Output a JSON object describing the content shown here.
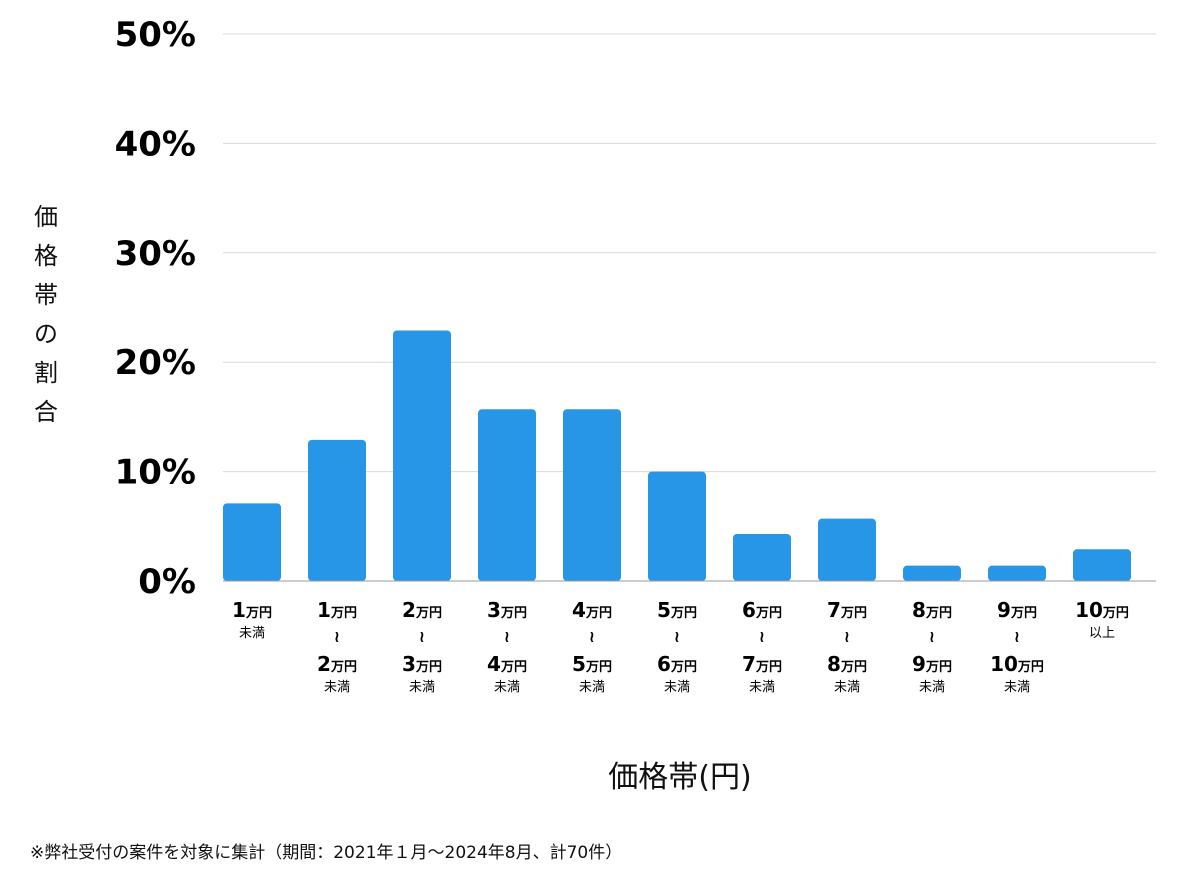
{
  "chart_data": {
    "type": "bar",
    "ylabel": "価格帯の割合",
    "xlabel": "価格帯(円)",
    "ylim": [
      0,
      50
    ],
    "yticks": [
      "0%",
      "10%",
      "20%",
      "30%",
      "40%",
      "50%"
    ],
    "grid": true,
    "bar_color": "#2896e6",
    "categories": [
      {
        "lower": "1",
        "lower_unit": "万円",
        "upper": "",
        "upper_unit": "",
        "note": "未満"
      },
      {
        "lower": "1",
        "lower_unit": "万円",
        "upper": "2",
        "upper_unit": "万円",
        "note": "未満"
      },
      {
        "lower": "2",
        "lower_unit": "万円",
        "upper": "3",
        "upper_unit": "万円",
        "note": "未満"
      },
      {
        "lower": "3",
        "lower_unit": "万円",
        "upper": "4",
        "upper_unit": "万円",
        "note": "未満"
      },
      {
        "lower": "4",
        "lower_unit": "万円",
        "upper": "5",
        "upper_unit": "万円",
        "note": "未満"
      },
      {
        "lower": "5",
        "lower_unit": "万円",
        "upper": "6",
        "upper_unit": "万円",
        "note": "未満"
      },
      {
        "lower": "6",
        "lower_unit": "万円",
        "upper": "7",
        "upper_unit": "万円",
        "note": "未満"
      },
      {
        "lower": "7",
        "lower_unit": "万円",
        "upper": "8",
        "upper_unit": "万円",
        "note": "未満"
      },
      {
        "lower": "8",
        "lower_unit": "万円",
        "upper": "9",
        "upper_unit": "万円",
        "note": "未満"
      },
      {
        "lower": "9",
        "lower_unit": "万円",
        "upper": "10",
        "upper_unit": "万円",
        "note": "未満"
      },
      {
        "lower": "10",
        "lower_unit": "万円",
        "upper": "",
        "upper_unit": "",
        "note": "以上"
      }
    ],
    "values": [
      7.1,
      12.9,
      22.9,
      15.7,
      15.7,
      10.0,
      4.3,
      5.7,
      1.4,
      1.4,
      2.9
    ]
  },
  "footnote": "※弊社受付の案件を対象に集計（期間：2021年１月〜2024年8月、計70件）"
}
